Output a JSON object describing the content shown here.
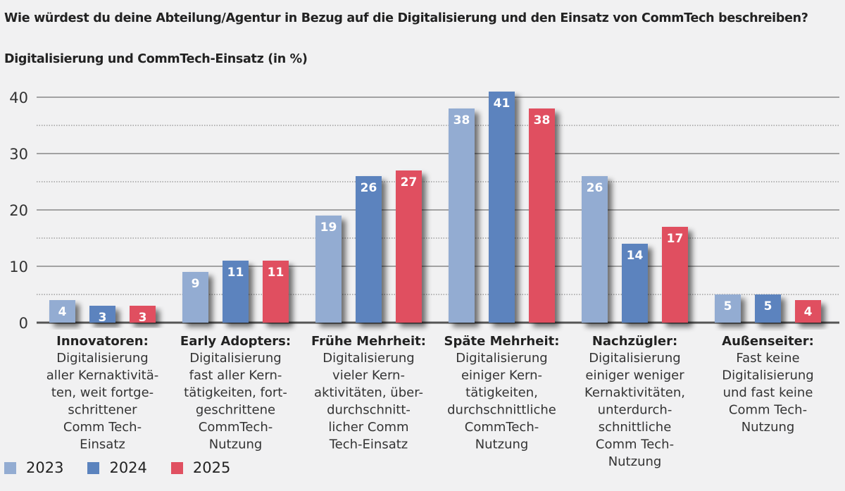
{
  "title": "Wie würdest du deine Abteilung/Agentur in Bezug auf die Digitalisierung und den Einsatz von CommTech beschreiben?",
  "subtitle": "Digitalisierung und CommTech-Einsatz (in %)",
  "chart_data": {
    "type": "bar",
    "title": "Wie würdest du deine Abteilung/Agentur in Bezug auf die Digitalisierung und den Einsatz von CommTech beschreiben?",
    "subtitle": "Digitalisierung und CommTech-Einsatz (in %)",
    "ylim": [
      0,
      40
    ],
    "yticks": [
      0,
      10,
      20,
      30,
      40
    ],
    "grid": true,
    "legend": "bottom-left",
    "categories": [
      {
        "head": "Innovatoren:",
        "lines": [
          "Digitalisierung",
          "aller Kernaktivitä-",
          "ten, weit fortge-",
          "schrittener",
          "Comm Tech-",
          "Einsatz"
        ]
      },
      {
        "head": "Early Adopters:",
        "lines": [
          "Digitalisierung",
          "fast aller Kern-",
          "tätigkeiten, fort-",
          "geschrittene",
          "CommTech-",
          "Nutzung"
        ]
      },
      {
        "head": "Frühe Mehrheit:",
        "lines": [
          "Digitalisierung",
          "vieler Kern-",
          "aktivitäten, über-",
          "durchschnitt-",
          "licher Comm",
          "Tech-Einsatz"
        ]
      },
      {
        "head": "Späte Mehrheit:",
        "lines": [
          "Digitalisierung",
          "einiger Kern-",
          "tätigkeiten,",
          "durchschnittliche",
          "CommTech-",
          "Nutzung"
        ]
      },
      {
        "head": "Nachzügler:",
        "lines": [
          "Digitalisierung",
          "einiger weniger",
          "Kernaktivitäten,",
          "unterdurch-",
          "schnittliche",
          "Comm Tech-",
          "Nutzung"
        ]
      },
      {
        "head": "Außenseiter:",
        "lines": [
          "Fast keine",
          "Digitalisierung",
          "und fast keine",
          "Comm Tech-",
          "Nutzung"
        ]
      }
    ],
    "series": [
      {
        "name": "2023",
        "color": "#93acd2",
        "values": [
          4,
          9,
          19,
          38,
          26,
          5
        ]
      },
      {
        "name": "2024",
        "color": "#5b83be",
        "values": [
          3,
          11,
          26,
          41,
          14,
          5
        ]
      },
      {
        "name": "2025",
        "color": "#e05061",
        "values": [
          3,
          11,
          27,
          38,
          17,
          4
        ]
      }
    ]
  }
}
